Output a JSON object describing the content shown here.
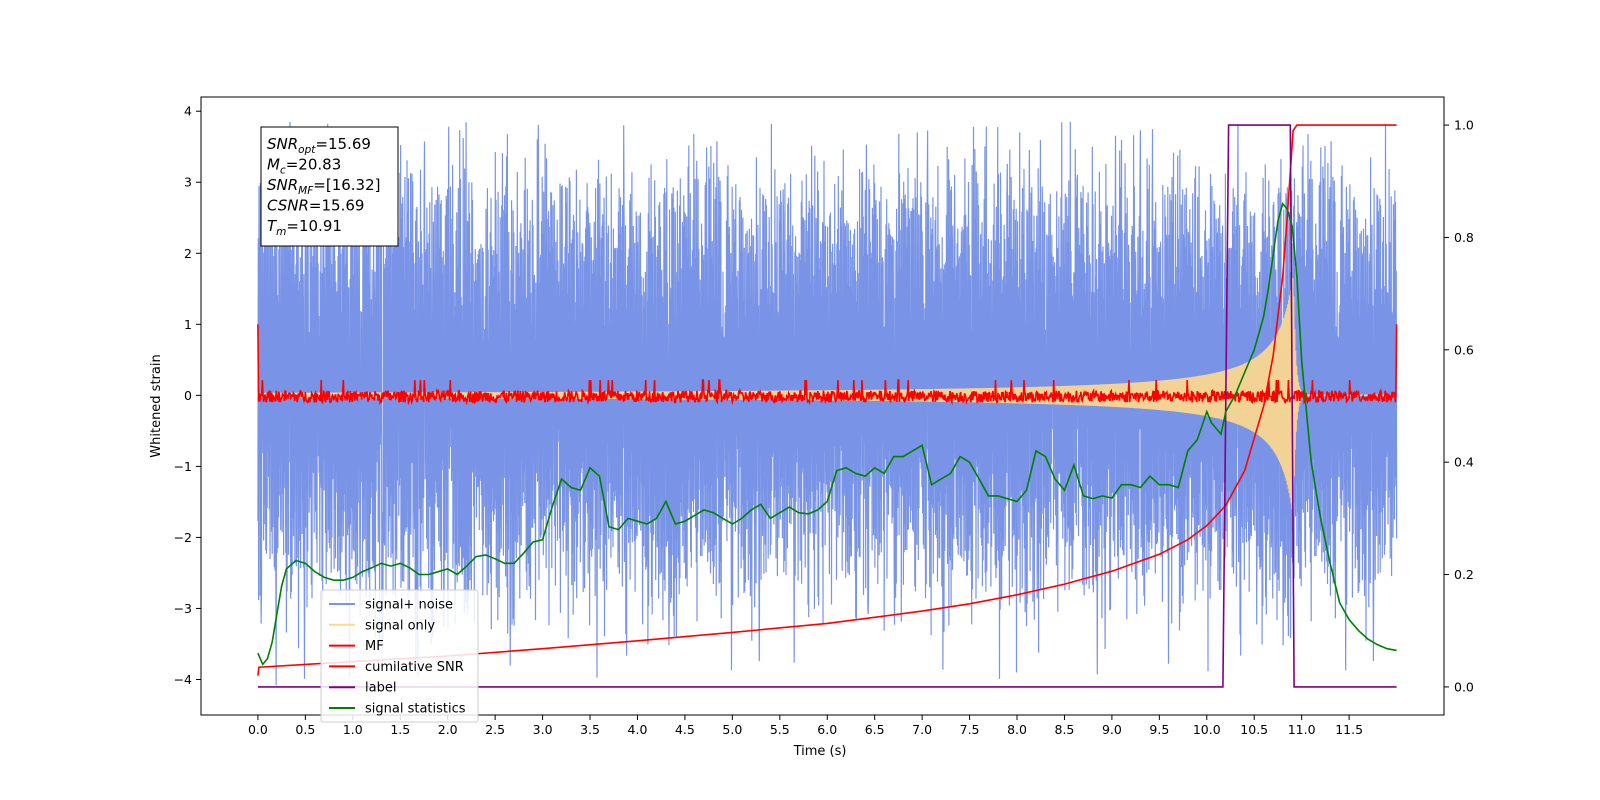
{
  "chart_data": {
    "type": "line",
    "xlabel": "Time (s)",
    "ylabel": "Whitened strain",
    "xlim": [
      -0.6,
      12.5
    ],
    "ylim_left": [
      -4.5,
      4.2
    ],
    "ylim_right": [
      -0.05,
      1.05
    ],
    "x_tick_labels": [
      "0.0",
      "0.5",
      "1.0",
      "1.5",
      "2.0",
      "2.5",
      "3.0",
      "3.5",
      "4.0",
      "4.5",
      "5.0",
      "5.5",
      "6.0",
      "6.5",
      "7.0",
      "7.5",
      "8.0",
      "8.5",
      "9.0",
      "9.5",
      "10.0",
      "10.5",
      "11.0",
      "11.5"
    ],
    "y_left_tick_labels": [
      "4",
      "3",
      "2",
      "1",
      "0",
      "−1",
      "−2",
      "−3",
      "−4"
    ],
    "y_right_tick_labels": [
      "1.0",
      "0.8",
      "0.6",
      "0.4",
      "0.2",
      "0.0"
    ],
    "legend": {
      "location": "lower-left",
      "entries": [
        {
          "label": "signal+ noise",
          "color": "#7994e6"
        },
        {
          "label": "signal only",
          "color": "#ffd98c"
        },
        {
          "label": "MF",
          "color": "#ff0000"
        },
        {
          "label": "cumilative SNR",
          "color": "#ff0000"
        },
        {
          "label": "label",
          "color": "#800080"
        },
        {
          "label": "signal statistics",
          "color": "#008000"
        }
      ]
    },
    "stats_box": {
      "location": "top-left",
      "lines": [
        {
          "sym": "SNR",
          "sub": "opt",
          "val": "=15.69"
        },
        {
          "sym": "M",
          "sub": "c",
          "val": "=20.83"
        },
        {
          "sym": "SNR",
          "sub": "MF",
          "val": "=[16.32]"
        },
        {
          "sym": "CSNR",
          "sub": "",
          "val": "=15.69"
        },
        {
          "sym": "T",
          "sub": "m",
          "val": "=10.91"
        }
      ]
    },
    "series": [
      {
        "name": "signal+ noise",
        "axis": "left",
        "color": "#7994e6",
        "kind": "noise",
        "x_range": [
          0.0,
          12.0
        ],
        "band_range": [
          -2.8,
          3.1
        ],
        "peak_range": [
          -4.1,
          3.85
        ]
      },
      {
        "name": "signal only",
        "axis": "left",
        "color": "#ffd98c",
        "kind": "chirp",
        "x_range": [
          0.0,
          12.0
        ],
        "merger_time": 10.91,
        "peak_amplitude": 1.7
      },
      {
        "name": "MF",
        "axis": "left",
        "color": "#ff0000",
        "kind": "baseline",
        "x_range": [
          0.0,
          12.0
        ],
        "level": 0.0,
        "spread": [
          -0.1,
          0.18
        ],
        "edge_value": 1.0
      },
      {
        "name": "cumilative SNR",
        "axis": "right",
        "color": "#ff0000",
        "x": [
          0.0,
          0.01,
          1.0,
          2.0,
          3.0,
          4.0,
          5.0,
          6.0,
          7.0,
          7.5,
          8.0,
          8.5,
          9.0,
          9.5,
          9.8,
          10.0,
          10.2,
          10.4,
          10.6,
          10.7,
          10.8,
          10.85,
          10.91,
          10.95,
          11.0,
          11.5,
          12.0
        ],
        "y": [
          0.02,
          0.035,
          0.045,
          0.055,
          0.068,
          0.082,
          0.097,
          0.113,
          0.135,
          0.148,
          0.164,
          0.183,
          0.206,
          0.236,
          0.262,
          0.287,
          0.323,
          0.385,
          0.5,
          0.59,
          0.73,
          0.84,
          0.99,
          1.0,
          1.0,
          1.0,
          1.0
        ]
      },
      {
        "name": "label",
        "axis": "right",
        "color": "#800080",
        "x": [
          0.0,
          10.17,
          10.23,
          10.88,
          10.92,
          12.0
        ],
        "y": [
          0.0,
          0.0,
          1.0,
          1.0,
          0.0,
          0.0
        ]
      },
      {
        "name": "signal statistics",
        "axis": "right",
        "color": "#008000",
        "x": [
          0.0,
          0.05,
          0.1,
          0.15,
          0.2,
          0.25,
          0.3,
          0.4,
          0.5,
          0.6,
          0.7,
          0.8,
          0.9,
          1.0,
          1.1,
          1.2,
          1.3,
          1.4,
          1.5,
          1.6,
          1.7,
          1.8,
          1.9,
          2.0,
          2.1,
          2.2,
          2.3,
          2.4,
          2.5,
          2.6,
          2.7,
          2.8,
          2.9,
          3.0,
          3.1,
          3.15,
          3.2,
          3.3,
          3.4,
          3.5,
          3.6,
          3.7,
          3.8,
          3.9,
          4.0,
          4.1,
          4.2,
          4.3,
          4.4,
          4.5,
          4.6,
          4.7,
          4.8,
          4.9,
          5.0,
          5.1,
          5.2,
          5.3,
          5.4,
          5.5,
          5.6,
          5.7,
          5.8,
          5.9,
          6.0,
          6.1,
          6.2,
          6.3,
          6.4,
          6.5,
          6.6,
          6.7,
          6.8,
          6.9,
          7.0,
          7.1,
          7.2,
          7.3,
          7.4,
          7.5,
          7.6,
          7.7,
          7.8,
          7.9,
          8.0,
          8.1,
          8.2,
          8.3,
          8.4,
          8.5,
          8.6,
          8.7,
          8.8,
          8.9,
          9.0,
          9.1,
          9.2,
          9.3,
          9.4,
          9.5,
          9.6,
          9.7,
          9.8,
          9.9,
          10.0,
          10.05,
          10.1,
          10.15,
          10.2,
          10.3,
          10.4,
          10.5,
          10.55,
          10.6,
          10.65,
          10.7,
          10.75,
          10.8,
          10.85,
          10.9,
          10.95,
          11.0,
          11.1,
          11.2,
          11.3,
          11.4,
          11.5,
          11.6,
          11.7,
          11.8,
          11.9,
          12.0
        ],
        "y": [
          0.06,
          0.04,
          0.05,
          0.08,
          0.13,
          0.18,
          0.21,
          0.225,
          0.22,
          0.205,
          0.195,
          0.19,
          0.19,
          0.195,
          0.205,
          0.212,
          0.22,
          0.215,
          0.22,
          0.212,
          0.2,
          0.2,
          0.205,
          0.21,
          0.2,
          0.215,
          0.232,
          0.235,
          0.228,
          0.22,
          0.22,
          0.238,
          0.258,
          0.262,
          0.32,
          0.345,
          0.37,
          0.355,
          0.35,
          0.39,
          0.375,
          0.285,
          0.28,
          0.3,
          0.295,
          0.29,
          0.3,
          0.33,
          0.29,
          0.295,
          0.305,
          0.315,
          0.31,
          0.3,
          0.29,
          0.3,
          0.315,
          0.325,
          0.3,
          0.31,
          0.32,
          0.31,
          0.308,
          0.315,
          0.33,
          0.385,
          0.39,
          0.38,
          0.375,
          0.39,
          0.38,
          0.41,
          0.41,
          0.42,
          0.43,
          0.36,
          0.37,
          0.38,
          0.41,
          0.4,
          0.37,
          0.34,
          0.34,
          0.335,
          0.33,
          0.35,
          0.42,
          0.41,
          0.37,
          0.35,
          0.395,
          0.34,
          0.335,
          0.34,
          0.336,
          0.36,
          0.36,
          0.355,
          0.375,
          0.36,
          0.36,
          0.355,
          0.42,
          0.44,
          0.49,
          0.47,
          0.46,
          0.45,
          0.49,
          0.52,
          0.56,
          0.6,
          0.63,
          0.66,
          0.71,
          0.77,
          0.83,
          0.86,
          0.85,
          0.82,
          0.73,
          0.58,
          0.4,
          0.3,
          0.22,
          0.15,
          0.12,
          0.1,
          0.085,
          0.075,
          0.068,
          0.065
        ]
      }
    ]
  }
}
